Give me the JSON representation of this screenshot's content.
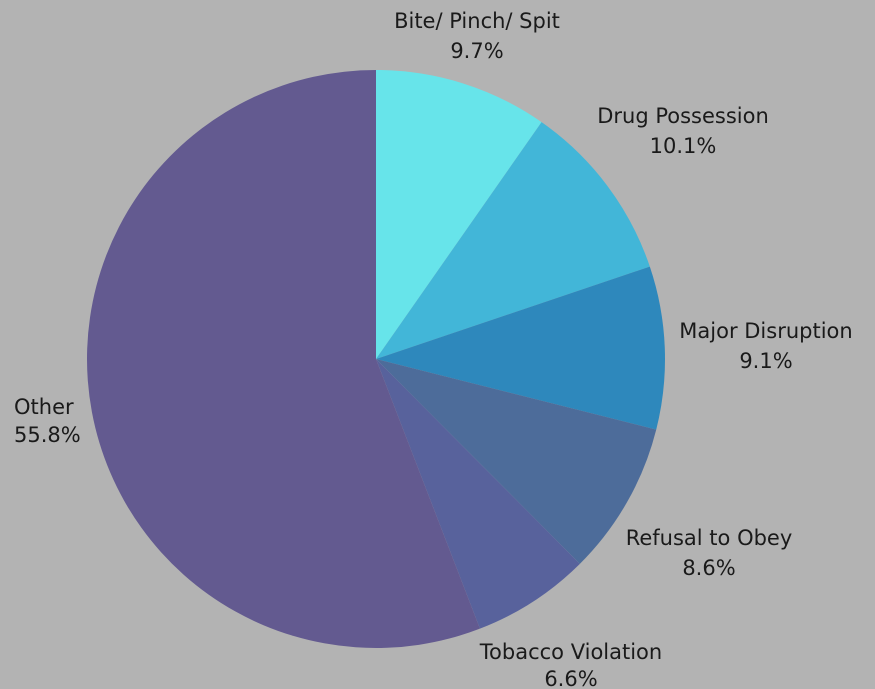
{
  "chart_data": {
    "type": "pie",
    "title": "",
    "start_angle_deg": 0,
    "direction": "clockwise",
    "slices": [
      {
        "label": "Bite/ Pinch/ Spit",
        "value": 9.7,
        "value_label": "9.7%",
        "color": "#67e4ea"
      },
      {
        "label": "Drug Possession",
        "value": 10.1,
        "value_label": "10.1%",
        "color": "#42b6d8"
      },
      {
        "label": "Major Disruption",
        "value": 9.1,
        "value_label": "9.1%",
        "color": "#2e88bc"
      },
      {
        "label": "Refusal to Obey",
        "value": 8.6,
        "value_label": "8.6%",
        "color": "#4d6c9a"
      },
      {
        "label": "Tobacco Violation",
        "value": 6.6,
        "value_label": "6.6%",
        "color": "#58629c"
      },
      {
        "label": "Other",
        "value": 55.8,
        "value_label": "55.8%",
        "color": "#635a90"
      }
    ]
  }
}
